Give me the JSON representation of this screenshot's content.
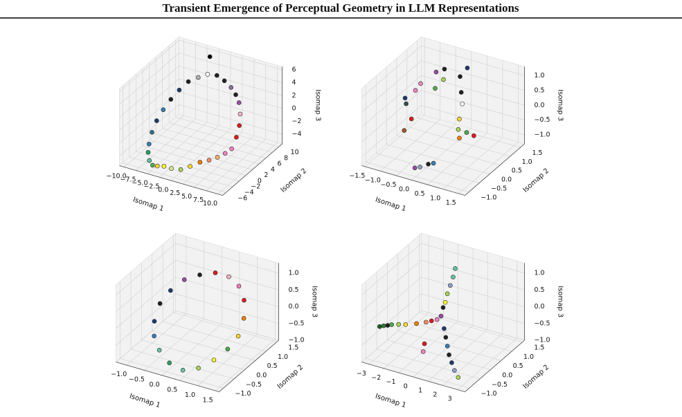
{
  "title": "Transient Emergence of Perceptual Geometry in LLM Representations",
  "chart_data": [
    {
      "type": "scatter3d",
      "xlabel": "Isomap 1",
      "ylabel": "Isomap 2",
      "zlabel": "Isomap 3",
      "xlim": [
        -11,
        11
      ],
      "ylim": [
        -7,
        11
      ],
      "zlim": [
        -5.5,
        6.5
      ],
      "xticks": [
        {
          "value": -10,
          "label": "−10.0"
        },
        {
          "value": -7.5,
          "label": "−7.5"
        },
        {
          "value": -5,
          "label": "−5.0"
        },
        {
          "value": -2.5,
          "label": "−2.5"
        },
        {
          "value": 0,
          "label": "0.0"
        },
        2.5,
        {
          "value": 5,
          "label": "5.0"
        },
        7.5,
        {
          "value": 10,
          "label": "10.0"
        }
      ],
      "yticks": [
        {
          "value": -6,
          "label": "−6"
        },
        {
          "value": -4,
          "label": "−4"
        },
        {
          "value": -2,
          "label": "−2"
        },
        0,
        2,
        4,
        6,
        8,
        10
      ],
      "zticks": [
        {
          "value": -4,
          "label": "−4"
        },
        {
          "value": -2,
          "label": "−2"
        },
        0,
        2,
        4,
        6
      ],
      "x": [
        8,
        7.8,
        7.3,
        6.5,
        5.4,
        4,
        2.5,
        0.8,
        -0.8,
        -2.5,
        -4,
        -5.4,
        -6.5,
        -7.3,
        -7.8,
        -8,
        -7.8,
        -7.3,
        -6.5,
        -5.4,
        -4,
        -2.5,
        -0.8,
        0.8,
        2.5,
        4,
        5.4,
        6.5,
        7.3,
        7.8,
        -3
      ],
      "y": [
        0,
        1.7,
        3.3,
        4.7,
        5.9,
        6.9,
        7.6,
        8,
        8,
        7.6,
        6.9,
        5.9,
        4.7,
        3.3,
        1.7,
        0,
        -1.7,
        -3.3,
        -4.7,
        -5.9,
        -6.9,
        -7.6,
        -8,
        -8,
        -7.6,
        -6.9,
        -5.9,
        -4.7,
        -3.3,
        -1.7,
        9
      ],
      "z": [
        -2,
        -1,
        0,
        1,
        2,
        2.5,
        3,
        3.5,
        4,
        4,
        3.5,
        3,
        2,
        1,
        0,
        -1,
        -2,
        -3,
        -3.5,
        -4,
        -4,
        -3.5,
        -3,
        -3,
        -3,
        -2.5,
        -2,
        -2,
        -2,
        -2,
        6
      ],
      "colors": [
        "#f781bf",
        "#e41a1c",
        "#e41a1c",
        "#fbb4c4",
        "#984ea3",
        "#222222",
        "#8d6e9c",
        "#222222",
        "#222222",
        "#ffffff",
        "#b3b3b3",
        "#222222",
        "#1f3b73",
        "#222222",
        "#377eb8",
        "#1f3b73",
        "#2f6f8f",
        "#377eb8",
        "#2ca25f",
        "#66c2a5",
        "#4daf4a",
        "#ffd92f",
        "#ffff33",
        "#d9ef8b",
        "#a6d854",
        "#ffd92f",
        "#ff7f00",
        "#fc8d62",
        "#fdb462",
        "#f781bf",
        "#000000"
      ]
    },
    {
      "type": "scatter3d",
      "xlabel": "Isomap 1",
      "ylabel": "Isomap 2",
      "zlabel": "Isomap 3",
      "xlim": [
        -1.6,
        1.7
      ],
      "ylim": [
        -1.2,
        1.7
      ],
      "zlim": [
        -1.3,
        1.3
      ],
      "xticks": [
        {
          "value": -1.5,
          "label": "−1.5"
        },
        {
          "value": -1,
          "label": "−1.0"
        },
        {
          "value": -0.5,
          "label": "−0.5"
        },
        {
          "value": 0,
          "label": "0.0"
        },
        0.5,
        {
          "value": 1,
          "label": "1.0"
        },
        1.5
      ],
      "yticks": [
        {
          "value": -1,
          "label": "−1.0"
        },
        {
          "value": -0.5,
          "label": "−0.5"
        },
        {
          "value": 0,
          "label": "0.0"
        },
        0.5,
        {
          "value": 1,
          "label": "1.0"
        },
        1.5
      ],
      "zticks": [
        {
          "value": -1,
          "label": "−1.0"
        },
        {
          "value": -0.5,
          "label": "−0.5"
        },
        {
          "value": 0,
          "label": "0.0"
        },
        0.5,
        {
          "value": 1,
          "label": "1.0"
        }
      ],
      "x": [
        -1.2,
        -1.1,
        -1.0,
        -0.9,
        -0.8,
        -0.6,
        -0.4,
        -0.3,
        -0.5,
        0.2,
        0.1,
        0.5,
        0.6,
        0.7,
        0.8,
        1.0,
        0.9,
        0.0,
        0.2,
        0.3,
        -0.1,
        -0.9,
        0.4
      ],
      "y": [
        0.3,
        0.2,
        0.5,
        0.6,
        0.0,
        0.9,
        1.0,
        0.8,
        0.7,
        1.2,
        1.0,
        0.5,
        0.2,
        0.0,
        -0.1,
        0.3,
        0.1,
        -0.8,
        -0.7,
        -0.6,
        -0.9,
        -0.2,
        0.6
      ],
      "z": [
        0.2,
        0.1,
        0.4,
        0.6,
        -0.2,
        0.9,
        1.0,
        0.8,
        0.5,
        1.1,
        0.9,
        0.4,
        0.1,
        -0.1,
        -0.3,
        -0.4,
        -0.2,
        -1.1,
        -1.0,
        -1.0,
        -1.1,
        -0.5,
        0.7
      ],
      "colors": [
        "#1f3b73",
        "#2f4f4f",
        "#f781bf",
        "#e78ac3",
        "#e41a1c",
        "#984ea3",
        "#222222",
        "#a6d854",
        "#4daf4a",
        "#1f3b73",
        "#222222",
        "#ffffff",
        "#ffd92f",
        "#a6d854",
        "#ff7f00",
        "#e41a1c",
        "#4daf4a",
        "#8da0cb",
        "#222222",
        "#377eb8",
        "#984ea3",
        "#a65628",
        "#222222"
      ]
    },
    {
      "type": "scatter3d",
      "xlabel": "Isomap 1",
      "ylabel": "Isomap 2",
      "zlabel": "Isomap 3",
      "xlim": [
        -1.3,
        1.6
      ],
      "ylim": [
        -1.2,
        1.6
      ],
      "zlim": [
        -1.0,
        1.3
      ],
      "xticks": [
        {
          "value": -1,
          "label": "−1.0"
        },
        {
          "value": -0.5,
          "label": "−0.5"
        },
        {
          "value": 0,
          "label": "0.0"
        },
        0.5,
        {
          "value": 1,
          "label": "1.0"
        },
        1.5
      ],
      "yticks": [
        {
          "value": -1,
          "label": "−1.0"
        },
        {
          "value": -0.5,
          "label": "−0.5"
        },
        {
          "value": 0,
          "label": "0.0"
        },
        0.5,
        {
          "value": 1,
          "label": "1.0"
        },
        1.5
      ],
      "zticks": [
        {
          "value": -1,
          "label": "−1.0"
        },
        {
          "value": -0.5,
          "label": "−0.5"
        },
        {
          "value": 0,
          "label": "0.0"
        },
        0.5,
        {
          "value": 1,
          "label": "1.0"
        }
      ],
      "x": [
        1.3,
        1.23,
        1.04,
        0.75,
        0.39,
        0.01,
        -0.35,
        -0.64,
        -0.83,
        -0.9,
        -0.83,
        -0.64,
        -0.35,
        0.01,
        0.39,
        0.75,
        1.04,
        1.23
      ],
      "y": [
        0.2,
        0.58,
        0.91,
        1.15,
        1.28,
        1.28,
        1.15,
        0.91,
        0.58,
        0.2,
        -0.18,
        -0.51,
        -0.75,
        -0.88,
        -0.88,
        -0.75,
        -0.51,
        -0.18
      ],
      "z": [
        -0.2,
        0.1,
        0.4,
        0.6,
        0.7,
        0.7,
        0.6,
        0.5,
        0.3,
        0.1,
        -0.2,
        -0.4,
        -0.6,
        -0.8,
        -0.9,
        -0.8,
        -0.6,
        -0.4
      ],
      "colors": [
        "#ffd92f",
        "#ff7f00",
        "#e41a1c",
        "#f781bf",
        "#fbb4c4",
        "#e41a1c",
        "#222222",
        "#984ea3",
        "#1f3b73",
        "#222222",
        "#1f3b73",
        "#377eb8",
        "#66c2a5",
        "#2ca25f",
        "#66c2a5",
        "#a6d854",
        "#ffff33",
        "#4daf4a"
      ]
    },
    {
      "type": "scatter3d",
      "xlabel": "Isomap 1",
      "ylabel": "Isomap 2",
      "zlabel": "Isomap 3",
      "xlim": [
        -3.5,
        3.5
      ],
      "ylim": [
        -1.2,
        1.6
      ],
      "zlim": [
        -1.0,
        1.3
      ],
      "xticks": [
        {
          "value": -3,
          "label": "−3"
        },
        {
          "value": -2,
          "label": "−2"
        },
        {
          "value": -1,
          "label": "−1"
        },
        0,
        1,
        2,
        3
      ],
      "yticks": [
        {
          "value": -1,
          "label": "−1.0"
        },
        {
          "value": -0.5,
          "label": "−0.5"
        },
        {
          "value": 0,
          "label": "0.0"
        },
        0.5,
        {
          "value": 1,
          "label": "1.0"
        },
        1.5
      ],
      "zticks": [
        {
          "value": -1,
          "label": "−1.0"
        },
        {
          "value": -0.5,
          "label": "−0.5"
        },
        {
          "value": 0,
          "label": "0.0"
        },
        0.5,
        {
          "value": 1,
          "label": "1.0"
        }
      ],
      "x": [
        -3.3,
        -3.1,
        -2.9,
        -2.7,
        -2.3,
        -1.9,
        -1.3,
        -0.8,
        -0.5,
        -0.2,
        0,
        0,
        0,
        0.05,
        0.1,
        0.1,
        0,
        0.5,
        0.9,
        1.3,
        1.7,
        2.1,
        2.5,
        2.9,
        -0.4,
        -0.2
      ],
      "y": [
        -0.5,
        -0.45,
        -0.4,
        -0.35,
        -0.3,
        -0.25,
        -0.15,
        -0.05,
        0,
        0.05,
        0.1,
        0.3,
        0.4,
        0.5,
        0.6,
        0.7,
        0.2,
        -0.1,
        -0.3,
        -0.5,
        -0.7,
        -0.85,
        -1.0,
        -1.1,
        -0.4,
        -0.6
      ],
      "z": [
        -0.3,
        -0.28,
        -0.27,
        -0.25,
        -0.22,
        -0.2,
        -0.15,
        -0.1,
        -0.05,
        0.0,
        0.1,
        0.4,
        0.6,
        0.8,
        1.0,
        1.2,
        0.3,
        -0.1,
        -0.2,
        -0.3,
        -0.4,
        -0.5,
        -0.6,
        -0.7,
        -0.5,
        -0.6
      ],
      "colors": [
        "#1b5e20",
        "#2e7d32",
        "#222222",
        "#4daf4a",
        "#a6d854",
        "#ffd92f",
        "#ff7f00",
        "#fc8d62",
        "#e41a1c",
        "#f781bf",
        "#984ea3",
        "#ffff33",
        "#a6d854",
        "#8da0cb",
        "#66c2a5",
        "#66c2a5",
        "#222222",
        "#1f3b73",
        "#222222",
        "#377eb8",
        "#222222",
        "#1f3b73",
        "#8da0cb",
        "#a6d854",
        "#e41a1c",
        "#f781bf"
      ]
    }
  ]
}
